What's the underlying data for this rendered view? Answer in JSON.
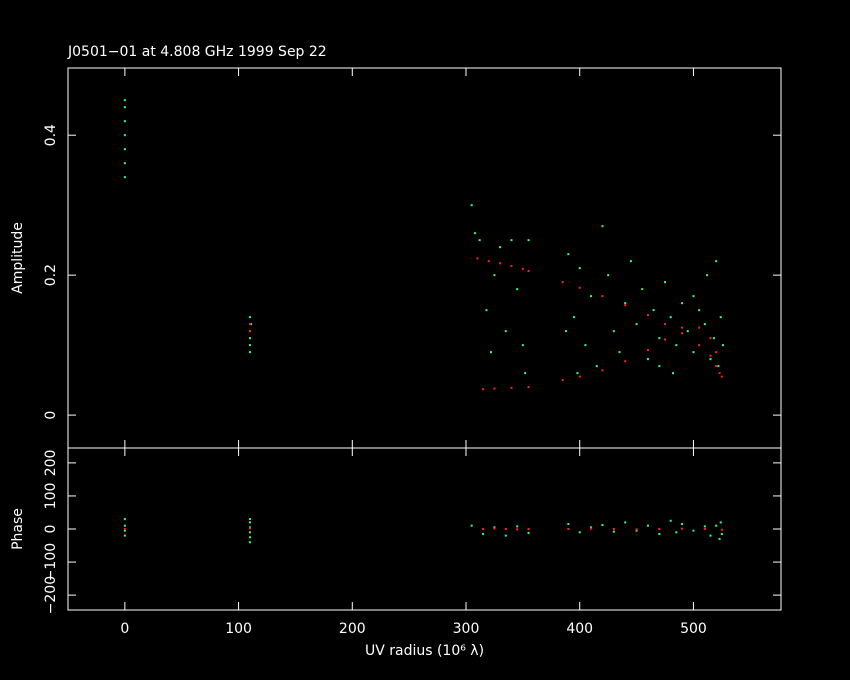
{
  "chart_data": [
    {
      "type": "scatter",
      "title": "J0501−01 at 4.808 GHz 1999 Sep 22",
      "y_label": "Amplitude",
      "xlim": [
        -50,
        577
      ],
      "xticks": [
        0,
        100,
        200,
        300,
        400,
        500
      ],
      "ylim": [
        -0.047,
        0.496
      ],
      "yticks": [
        0,
        0.2,
        0.4
      ],
      "series": [
        {
          "color": "#33ff77",
          "x": [
            0,
            0,
            0,
            0,
            0,
            0,
            0,
            110,
            110,
            110,
            110,
            111,
            110,
            305,
            308,
            312,
            318,
            322,
            330,
            335,
            340,
            345,
            350,
            355,
            352,
            325,
            390,
            395,
            400,
            405,
            410,
            415,
            420,
            425,
            430,
            435,
            440,
            445,
            450,
            455,
            460,
            465,
            470,
            475,
            480,
            485,
            490,
            495,
            500,
            505,
            510,
            512,
            515,
            518,
            520,
            522,
            524,
            526,
            388,
            398,
            470,
            482,
            500
          ],
          "y": [
            0.34,
            0.36,
            0.38,
            0.4,
            0.42,
            0.44,
            0.45,
            0.09,
            0.1,
            0.11,
            0.12,
            0.13,
            0.14,
            0.3,
            0.26,
            0.25,
            0.15,
            0.09,
            0.24,
            0.12,
            0.25,
            0.18,
            0.1,
            0.25,
            0.06,
            0.2,
            0.23,
            0.14,
            0.21,
            0.1,
            0.17,
            0.07,
            0.27,
            0.2,
            0.12,
            0.09,
            0.16,
            0.22,
            0.13,
            0.18,
            0.08,
            0.15,
            0.11,
            0.19,
            0.14,
            0.1,
            0.16,
            0.12,
            0.09,
            0.15,
            0.13,
            0.2,
            0.08,
            0.11,
            0.22,
            0.07,
            0.14,
            0.1,
            0.12,
            0.06,
            0.07,
            0.06,
            0.17
          ]
        },
        {
          "color": "#ff2020",
          "x": [
            110,
            110,
            310,
            320,
            330,
            340,
            350,
            355,
            385,
            400,
            420,
            440,
            460,
            475,
            490,
            505,
            515,
            520,
            523,
            525,
            315,
            325,
            340,
            355,
            385,
            400,
            420,
            440,
            460,
            475,
            490,
            505,
            515,
            520
          ],
          "y": [
            0.13,
            0.12,
            0.224,
            0.22,
            0.217,
            0.213,
            0.209,
            0.206,
            0.19,
            0.182,
            0.17,
            0.157,
            0.143,
            0.13,
            0.117,
            0.1,
            0.085,
            0.07,
            0.06,
            0.055,
            0.037,
            0.038,
            0.039,
            0.04,
            0.05,
            0.055,
            0.064,
            0.077,
            0.093,
            0.108,
            0.125,
            0.125,
            0.11,
            0.09
          ]
        }
      ]
    },
    {
      "type": "scatter",
      "y_label": "Phase",
      "x_label": "UV radius  (10⁶ λ)",
      "xlim": [
        -50,
        577
      ],
      "xticks": [
        0,
        100,
        200,
        300,
        400,
        500
      ],
      "ylim": [
        -245,
        245
      ],
      "yticks": [
        {
          "value": -200,
          "label": "−200"
        },
        {
          "value": -100,
          "label": "−100"
        },
        0,
        100,
        200
      ],
      "series": [
        {
          "color": "#33ff77",
          "x": [
            0,
            0,
            0,
            0,
            110,
            110,
            110,
            110,
            110,
            110,
            305,
            315,
            325,
            335,
            345,
            355,
            390,
            400,
            410,
            420,
            430,
            440,
            450,
            460,
            470,
            480,
            485,
            490,
            500,
            510,
            515,
            520,
            523,
            525,
            524
          ],
          "y": [
            -20,
            -5,
            10,
            30,
            -40,
            -25,
            -10,
            5,
            20,
            30,
            10,
            -15,
            5,
            -20,
            8,
            -12,
            15,
            -10,
            5,
            12,
            -8,
            20,
            -5,
            10,
            -15,
            25,
            -10,
            15,
            -5,
            8,
            -20,
            10,
            -30,
            -15,
            20
          ]
        },
        {
          "color": "#ff2020",
          "x": [
            0,
            110,
            315,
            325,
            335,
            345,
            355,
            390,
            410,
            430,
            450,
            470,
            490,
            510,
            525
          ],
          "y": [
            0,
            2,
            0,
            1,
            0,
            -1,
            0,
            0,
            1,
            0,
            -1,
            0,
            1,
            0,
            -2
          ]
        }
      ]
    }
  ]
}
